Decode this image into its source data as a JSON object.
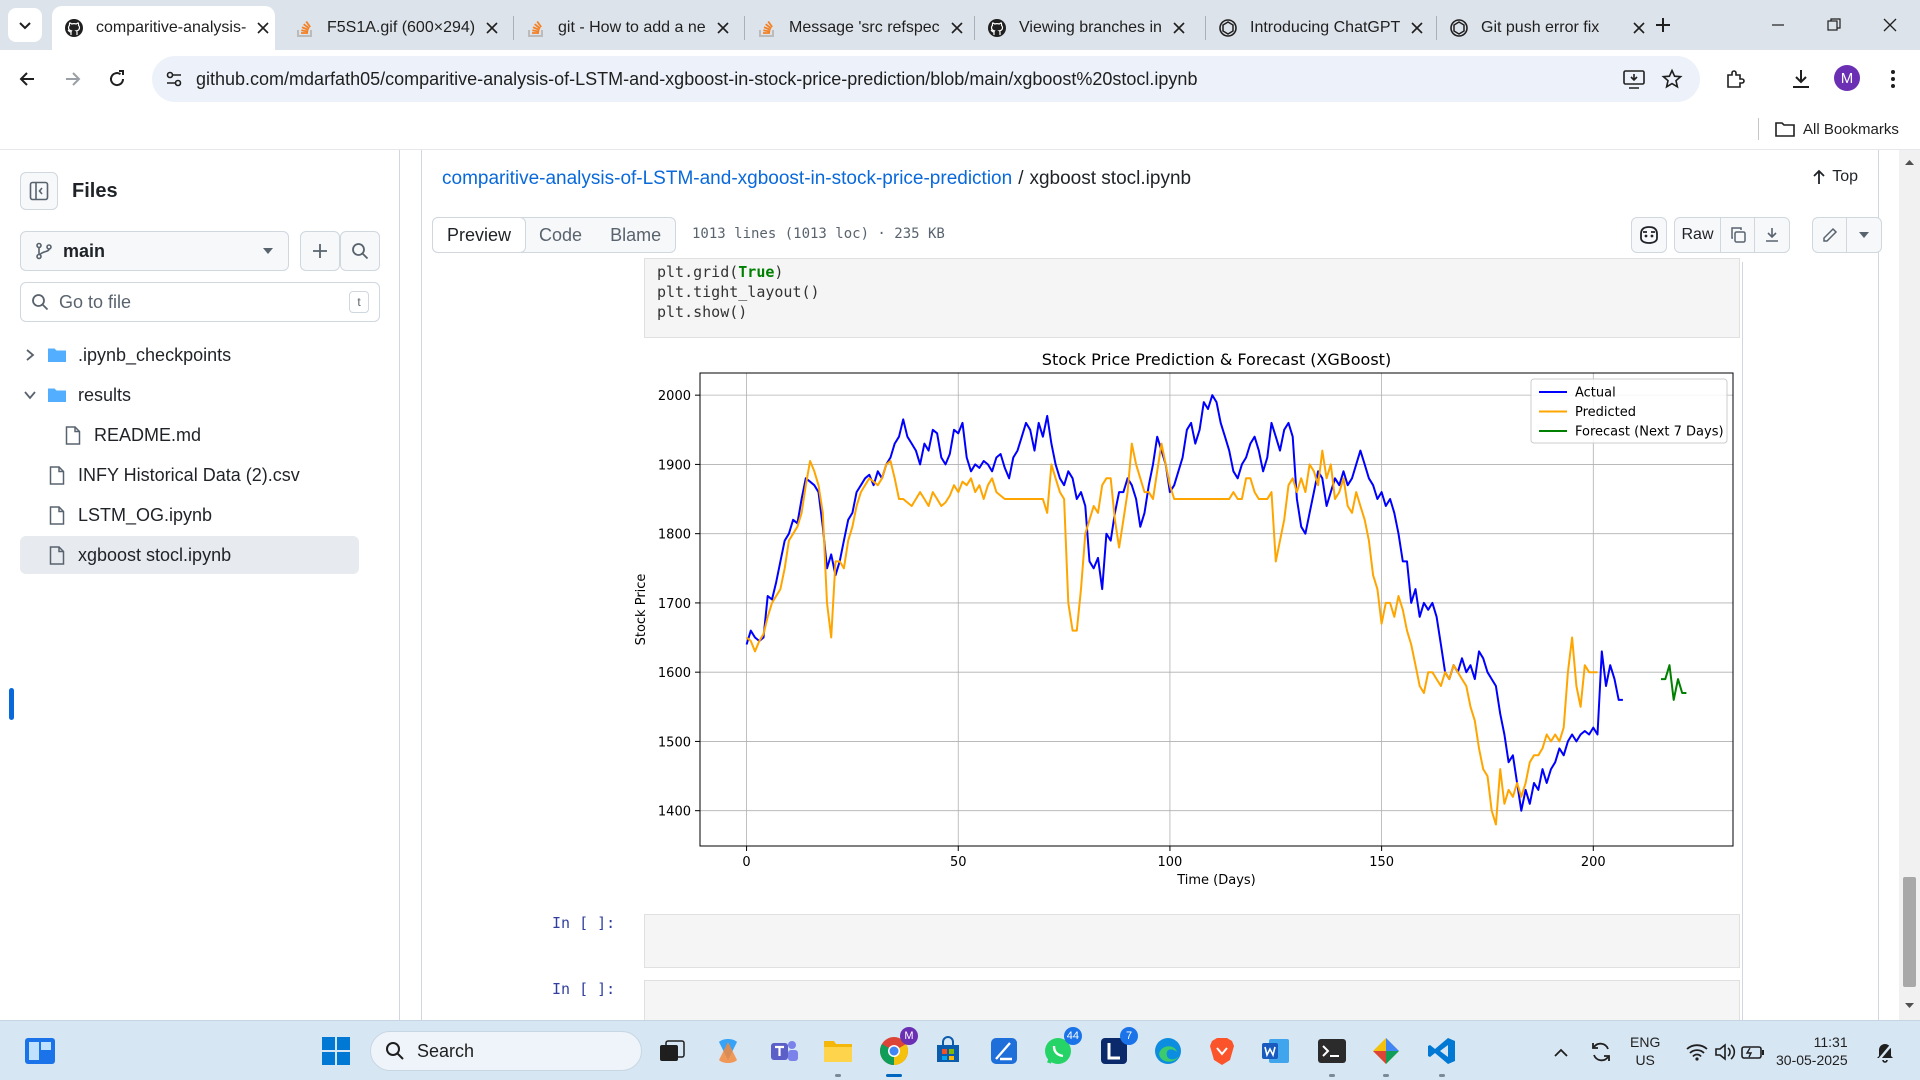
{
  "browser": {
    "tabs": [
      {
        "title": "comparitive-analysis-",
        "icon": "github-icon",
        "active": true
      },
      {
        "title": "F5S1A.gif (600×294)",
        "icon": "stackoverflow-icon",
        "active": false
      },
      {
        "title": "git - How to add a ne",
        "icon": "stackoverflow-icon",
        "active": false
      },
      {
        "title": "Message 'src refspec",
        "icon": "stackoverflow-icon",
        "active": false
      },
      {
        "title": "Viewing branches in",
        "icon": "github-icon",
        "active": false
      },
      {
        "title": "Introducing ChatGPT",
        "icon": "openai-icon",
        "active": false
      },
      {
        "title": "Git push error fix",
        "icon": "openai-icon",
        "active": false
      }
    ],
    "url": "github.com/mdarfath05/comparitive-analysis-of-LSTM-and-xgboost-in-stock-price-prediction/blob/main/xgboost%20stocl.ipynb",
    "profile_initial": "M",
    "bookmarks_label": "All Bookmarks"
  },
  "filetree": {
    "title": "Files",
    "branch": "main",
    "search_placeholder": "Go to file",
    "search_shortcut": "t",
    "items": [
      {
        "label": ".ipynb_checkpoints",
        "type": "folder",
        "expanded": false,
        "depth": 0
      },
      {
        "label": "results",
        "type": "folder",
        "expanded": true,
        "depth": 0
      },
      {
        "label": "README.md",
        "type": "file",
        "depth": 1
      },
      {
        "label": "INFY Historical Data (2).csv",
        "type": "file",
        "depth": 0
      },
      {
        "label": "LSTM_OG.ipynb",
        "type": "file",
        "depth": 0
      },
      {
        "label": "xgboost stocl.ipynb",
        "type": "file",
        "depth": 0,
        "selected": true
      }
    ]
  },
  "file": {
    "repo": "comparitive-analysis-of-LSTM-and-xgboost-in-stock-price-prediction",
    "separator": "/",
    "name": "xgboost stocl.ipynb",
    "top_label": "Top",
    "tabs": [
      "Preview",
      "Code",
      "Blame"
    ],
    "active_tab": "Preview",
    "info": "1013 lines (1013 loc) · 235 KB",
    "raw_label": "Raw"
  },
  "notebook": {
    "code_lines": [
      {
        "prefix": "plt.grid(",
        "kw": "True",
        "suffix": ")"
      },
      {
        "prefix": "plt.tight_layout()",
        "kw": "",
        "suffix": ""
      },
      {
        "prefix": "plt.show()",
        "kw": "",
        "suffix": ""
      }
    ],
    "empty_prompts": [
      "In [ ]:",
      "In [ ]:"
    ]
  },
  "chart_data": {
    "type": "line",
    "title": "Stock Price Prediction & Forecast (XGBoost)",
    "xlabel": "Time (Days)",
    "ylabel": "Stock Price",
    "xlim": [
      -11,
      233
    ],
    "ylim": [
      1349,
      2032
    ],
    "xticks": [
      0,
      50,
      100,
      150,
      200
    ],
    "yticks": [
      1400,
      1500,
      1600,
      1700,
      1800,
      1900,
      2000
    ],
    "grid": true,
    "legend_position": "top-right",
    "series": [
      {
        "name": "Actual",
        "color": "#0000ff",
        "x_start": 0,
        "values": [
          1640,
          1660,
          1650,
          1645,
          1650,
          1710,
          1705,
          1730,
          1760,
          1790,
          1800,
          1820,
          1815,
          1850,
          1880,
          1875,
          1870,
          1860,
          1810,
          1750,
          1770,
          1740,
          1760,
          1790,
          1820,
          1830,
          1860,
          1870,
          1880,
          1885,
          1870,
          1890,
          1880,
          1900,
          1910,
          1930,
          1940,
          1965,
          1940,
          1930,
          1920,
          1900,
          1930,
          1920,
          1950,
          1945,
          1910,
          1900,
          1915,
          1950,
          1945,
          1960,
          1910,
          1890,
          1900,
          1895,
          1905,
          1900,
          1890,
          1910,
          1915,
          1895,
          1880,
          1910,
          1920,
          1940,
          1960,
          1950,
          1920,
          1960,
          1940,
          1970,
          1930,
          1900,
          1880,
          1870,
          1890,
          1880,
          1850,
          1860,
          1840,
          1760,
          1750,
          1765,
          1720,
          1800,
          1790,
          1830,
          1860,
          1860,
          1880,
          1870,
          1850,
          1810,
          1830,
          1870,
          1900,
          1940,
          1920,
          1900,
          1860,
          1870,
          1890,
          1910,
          1950,
          1960,
          1930,
          1950,
          1990,
          1980,
          2000,
          1990,
          1960,
          1940,
          1920,
          1890,
          1880,
          1900,
          1910,
          1930,
          1940,
          1920,
          1890,
          1910,
          1960,
          1940,
          1920,
          1950,
          1960,
          1940,
          1850,
          1810,
          1800,
          1830,
          1860,
          1890,
          1880,
          1840,
          1860,
          1880,
          1870,
          1890,
          1870,
          1880,
          1900,
          1920,
          1900,
          1880,
          1870,
          1850,
          1860,
          1840,
          1850,
          1830,
          1800,
          1760,
          1760,
          1700,
          1720,
          1680,
          1700,
          1690,
          1700,
          1680,
          1640,
          1600,
          1590,
          1610,
          1600,
          1620,
          1600,
          1610,
          1590,
          1630,
          1620,
          1600,
          1590,
          1580,
          1540,
          1510,
          1470,
          1480,
          1440,
          1400,
          1430,
          1410,
          1440,
          1430,
          1460,
          1440,
          1460,
          1470,
          1490,
          1480,
          1500,
          1510,
          1500,
          1510,
          1515,
          1510,
          1520,
          1510,
          1630,
          1580,
          1610,
          1590,
          1560,
          1560
        ]
      },
      {
        "name": "Predicted",
        "color": "#ffa500",
        "x_start": 0,
        "values": [
          1650,
          1645,
          1630,
          1645,
          1655,
          1680,
          1700,
          1710,
          1720,
          1750,
          1790,
          1800,
          1810,
          1830,
          1870,
          1905,
          1890,
          1870,
          1830,
          1700,
          1650,
          1760,
          1760,
          1750,
          1790,
          1810,
          1840,
          1860,
          1870,
          1880,
          1875,
          1870,
          1880,
          1900,
          1905,
          1880,
          1850,
          1850,
          1845,
          1840,
          1850,
          1860,
          1850,
          1840,
          1860,
          1850,
          1840,
          1845,
          1855,
          1870,
          1860,
          1875,
          1870,
          1880,
          1860,
          1870,
          1850,
          1870,
          1880,
          1860,
          1855,
          1850,
          1850,
          1850,
          1850,
          1850,
          1850,
          1850,
          1850,
          1850,
          1850,
          1830,
          1900,
          1880,
          1860,
          1850,
          1700,
          1660,
          1660,
          1720,
          1800,
          1820,
          1840,
          1830,
          1870,
          1880,
          1880,
          1820,
          1780,
          1820,
          1860,
          1930,
          1900,
          1880,
          1860,
          1860,
          1850,
          1890,
          1930,
          1900,
          1870,
          1850,
          1850,
          1850,
          1850,
          1850,
          1850,
          1850,
          1850,
          1850,
          1850,
          1850,
          1850,
          1850,
          1850,
          1860,
          1850,
          1850,
          1880,
          1880,
          1860,
          1850,
          1850,
          1850,
          1860,
          1760,
          1790,
          1820,
          1870,
          1880,
          1860,
          1880,
          1860,
          1900,
          1890,
          1870,
          1920,
          1880,
          1900,
          1850,
          1860,
          1880,
          1840,
          1830,
          1860,
          1840,
          1820,
          1790,
          1740,
          1720,
          1670,
          1700,
          1700,
          1680,
          1710,
          1690,
          1660,
          1640,
          1610,
          1580,
          1570,
          1600,
          1600,
          1590,
          1580,
          1600,
          1590,
          1610,
          1600,
          1590,
          1580,
          1550,
          1530,
          1490,
          1460,
          1450,
          1400,
          1380,
          1460,
          1410,
          1430,
          1420,
          1440,
          1420,
          1440,
          1470,
          1480,
          1480,
          1490,
          1510,
          1500,
          1510,
          1500,
          1520,
          1600,
          1650,
          1580,
          1550,
          1610,
          1600,
          1600,
          1600
        ]
      },
      {
        "name": "Forecast (Next 7 Days)",
        "color": "#008000",
        "x_start": 216,
        "values": [
          1590,
          1590,
          1610,
          1560,
          1590,
          1570,
          1570
        ]
      }
    ]
  }
}
